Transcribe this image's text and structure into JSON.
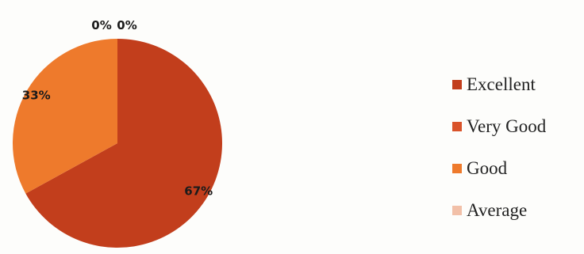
{
  "chart_data": {
    "type": "pie",
    "categories": [
      "Excellent",
      "Very Good",
      "Good",
      "Average"
    ],
    "values": [
      67,
      0,
      33,
      0
    ],
    "labels": [
      "67%",
      "0%",
      "33%",
      "0%"
    ],
    "colors": [
      "#c23e1c",
      "#d9532a",
      "#ee7a2c",
      "#f2c0a8"
    ],
    "legend_position": "right"
  }
}
